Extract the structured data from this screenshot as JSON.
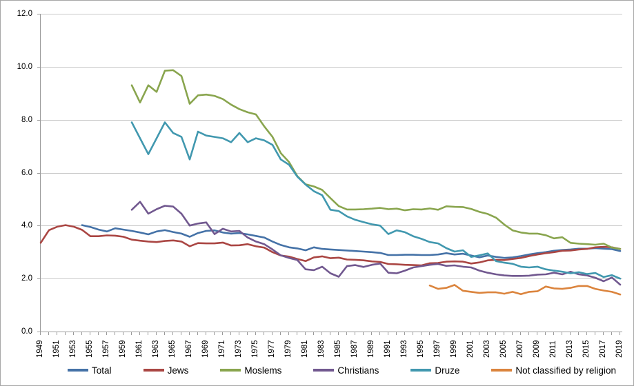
{
  "chart_data": {
    "type": "line",
    "title": "",
    "grid": true,
    "legend_position": "bottom",
    "x_axis": {
      "start": 1949,
      "end": 2019,
      "tick_interval": 1,
      "label_interval": 2,
      "labels": [
        "1949",
        "1951",
        "1953",
        "1955",
        "1957",
        "1959",
        "1961",
        "1963",
        "1965",
        "1967",
        "1969",
        "1971",
        "1973",
        "1975",
        "1977",
        "1979",
        "1981",
        "1983",
        "1985",
        "1987",
        "1989",
        "1991",
        "1993",
        "1995",
        "1997",
        "1999",
        "2001",
        "2003",
        "2005",
        "2007",
        "2009",
        "2011",
        "2013",
        "2015",
        "2017",
        "2019"
      ]
    },
    "y_axis": {
      "min": 0,
      "max": 12,
      "tick_interval": 2,
      "labels": [
        "0.0",
        "2.0",
        "4.0",
        "6.0",
        "8.0",
        "10.0",
        "12.0"
      ]
    },
    "axis_color": "#9a9a9a",
    "gridline_color": "#c9c9c9",
    "series": [
      {
        "name": "Total",
        "color": "#4572A7",
        "start_year": 1954,
        "values": [
          4.02,
          3.95,
          3.85,
          3.78,
          3.9,
          3.85,
          3.8,
          3.74,
          3.67,
          3.78,
          3.83,
          3.76,
          3.7,
          3.58,
          3.72,
          3.8,
          3.82,
          3.74,
          3.7,
          3.72,
          3.67,
          3.61,
          3.55,
          3.4,
          3.27,
          3.18,
          3.14,
          3.07,
          3.18,
          3.12,
          3.1,
          3.08,
          3.06,
          3.04,
          3.02,
          3.0,
          2.97,
          2.89,
          2.89,
          2.9,
          2.9,
          2.89,
          2.89,
          2.91,
          2.96,
          2.91,
          2.94,
          2.87,
          2.8,
          2.87,
          2.82,
          2.78,
          2.8,
          2.85,
          2.91,
          2.96,
          3.0,
          3.05,
          3.08,
          3.1,
          3.13,
          3.13,
          3.15,
          3.13,
          3.11,
          3.04
        ]
      },
      {
        "name": "Jews",
        "color": "#AA4643",
        "start_year": 1949,
        "values": [
          3.35,
          3.83,
          3.96,
          4.02,
          3.96,
          3.84,
          3.6,
          3.6,
          3.63,
          3.62,
          3.58,
          3.47,
          3.43,
          3.4,
          3.38,
          3.42,
          3.44,
          3.4,
          3.22,
          3.34,
          3.33,
          3.33,
          3.36,
          3.25,
          3.26,
          3.3,
          3.22,
          3.17,
          3.0,
          2.87,
          2.83,
          2.74,
          2.66,
          2.8,
          2.84,
          2.77,
          2.79,
          2.72,
          2.71,
          2.69,
          2.65,
          2.63,
          2.55,
          2.54,
          2.52,
          2.51,
          2.5,
          2.58,
          2.59,
          2.64,
          2.65,
          2.64,
          2.57,
          2.61,
          2.69,
          2.71,
          2.7,
          2.74,
          2.78,
          2.85,
          2.91,
          2.96,
          3.0,
          3.05,
          3.06,
          3.1,
          3.12,
          3.18,
          3.2,
          3.18,
          3.12
        ]
      },
      {
        "name": "Moslems",
        "color": "#89A54E",
        "start_year": 1960,
        "values": [
          9.3,
          8.65,
          9.3,
          9.05,
          9.85,
          9.87,
          9.65,
          8.6,
          8.92,
          8.95,
          8.9,
          8.78,
          8.57,
          8.4,
          8.28,
          8.2,
          7.75,
          7.35,
          6.74,
          6.4,
          5.87,
          5.56,
          5.48,
          5.35,
          5.04,
          4.74,
          4.61,
          4.61,
          4.62,
          4.64,
          4.67,
          4.62,
          4.64,
          4.58,
          4.62,
          4.61,
          4.65,
          4.6,
          4.73,
          4.71,
          4.7,
          4.63,
          4.52,
          4.44,
          4.3,
          4.04,
          3.82,
          3.74,
          3.7,
          3.7,
          3.64,
          3.52,
          3.56,
          3.35,
          3.32,
          3.3,
          3.28,
          3.32,
          3.17,
          3.12
        ]
      },
      {
        "name": "Christians",
        "color": "#71588F",
        "start_year": 1960,
        "values": [
          4.6,
          4.9,
          4.45,
          4.62,
          4.75,
          4.72,
          4.45,
          4.0,
          4.08,
          4.12,
          3.68,
          3.88,
          3.78,
          3.8,
          3.55,
          3.4,
          3.3,
          3.1,
          2.88,
          2.78,
          2.7,
          2.35,
          2.32,
          2.45,
          2.2,
          2.07,
          2.47,
          2.51,
          2.44,
          2.52,
          2.57,
          2.22,
          2.2,
          2.3,
          2.42,
          2.47,
          2.52,
          2.55,
          2.48,
          2.5,
          2.45,
          2.42,
          2.3,
          2.22,
          2.16,
          2.12,
          2.1,
          2.1,
          2.11,
          2.15,
          2.16,
          2.22,
          2.16,
          2.26,
          2.16,
          2.12,
          2.03,
          1.9,
          2.04,
          1.77
        ]
      },
      {
        "name": "Druze",
        "color": "#4198AF",
        "start_year": 1960,
        "values": [
          7.9,
          7.3,
          6.7,
          7.3,
          7.9,
          7.5,
          7.35,
          6.5,
          7.55,
          7.4,
          7.35,
          7.3,
          7.15,
          7.5,
          7.15,
          7.3,
          7.22,
          7.05,
          6.5,
          6.3,
          5.85,
          5.55,
          5.3,
          5.15,
          4.6,
          4.55,
          4.35,
          4.22,
          4.13,
          4.05,
          4.0,
          3.68,
          3.82,
          3.75,
          3.6,
          3.5,
          3.38,
          3.33,
          3.15,
          3.02,
          3.07,
          2.82,
          2.88,
          2.95,
          2.66,
          2.6,
          2.56,
          2.45,
          2.42,
          2.45,
          2.35,
          2.3,
          2.26,
          2.2,
          2.24,
          2.17,
          2.21,
          2.06,
          2.13,
          2.0
        ]
      },
      {
        "name": "Not classified by religion",
        "color": "#DB843D",
        "start_year": 1996,
        "values": [
          1.74,
          1.61,
          1.65,
          1.76,
          1.54,
          1.5,
          1.46,
          1.48,
          1.48,
          1.43,
          1.5,
          1.41,
          1.5,
          1.52,
          1.7,
          1.63,
          1.61,
          1.65,
          1.72,
          1.72,
          1.61,
          1.55,
          1.5,
          1.4
        ]
      }
    ]
  }
}
